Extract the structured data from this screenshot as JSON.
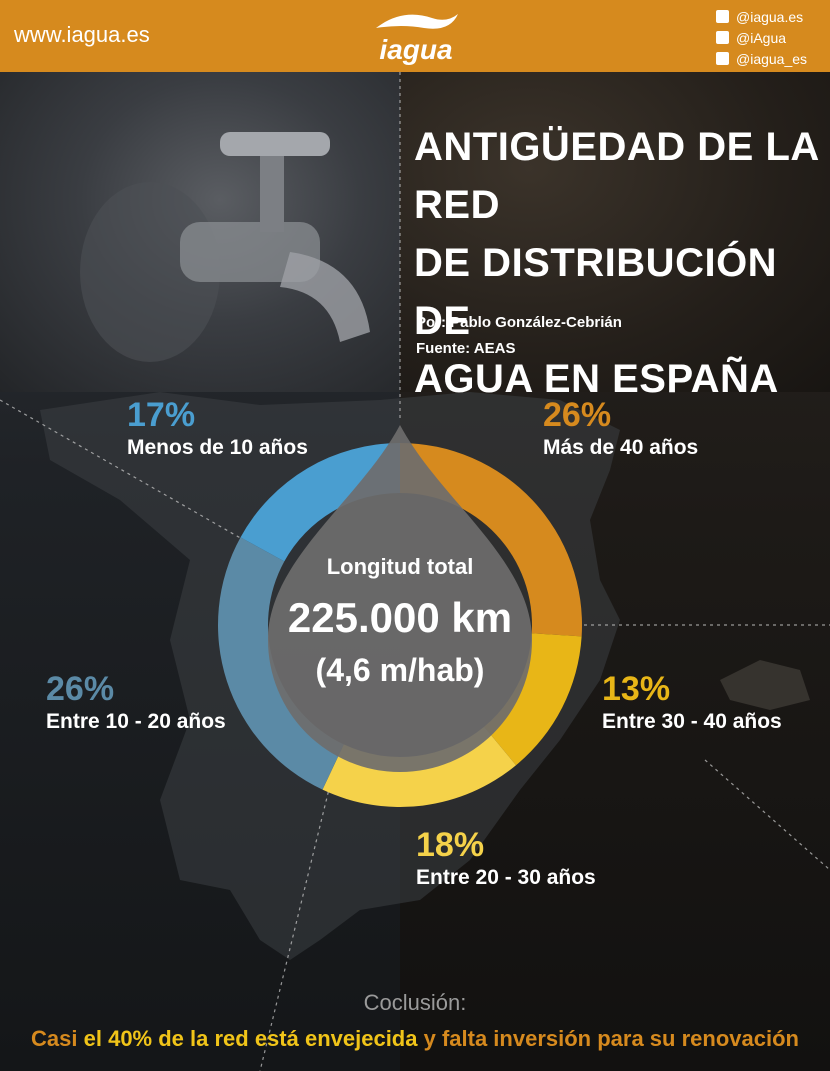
{
  "header": {
    "site_url": "www.iagua.es",
    "logo_text": "iagua",
    "social": [
      {
        "icon": "facebook-icon",
        "handle": "@iagua.es"
      },
      {
        "icon": "twitter-icon",
        "handle": "@iAgua"
      },
      {
        "icon": "instagram-icon",
        "handle": "@iagua_es"
      }
    ]
  },
  "title": {
    "line1": "ANTIGÜEDAD DE LA RED",
    "line2": "DE DISTRIBUCIÓN DE",
    "line3": "AGUA EN ESPAÑA"
  },
  "byline": {
    "author": "Por: Pablo González-Cebrián",
    "source": "Fuente: AEAS"
  },
  "center": {
    "label": "Longitud total",
    "value": "225.000 km",
    "sub": "(4,6 m/hab)"
  },
  "chart_data": {
    "type": "pie",
    "style": "donut",
    "series": [
      {
        "pct_label": "26%",
        "category": "Más de 40 años",
        "value": 26,
        "color": "#d68a1e"
      },
      {
        "pct_label": "13%",
        "category": "Entre 30 - 40 años",
        "value": 13,
        "color": "#e8b617"
      },
      {
        "pct_label": "18%",
        "category": "Entre 20 - 30 años",
        "value": 18,
        "color": "#f5d24a"
      },
      {
        "pct_label": "26%",
        "category": "Entre 10 - 20 años",
        "value": 26,
        "color": "#5b8aa6"
      },
      {
        "pct_label": "17%",
        "category": "Menos de 10 años",
        "value": 17,
        "color": "#4a9ed0"
      }
    ]
  },
  "conclusion": {
    "title": "Coclusión:",
    "part1": "Casi",
    "part2": " el 40% de la red está envejecida",
    "part3": " y falta inversión para su renovación",
    "color_orange": "#d68a1e",
    "color_yellow": "#f0c419"
  }
}
